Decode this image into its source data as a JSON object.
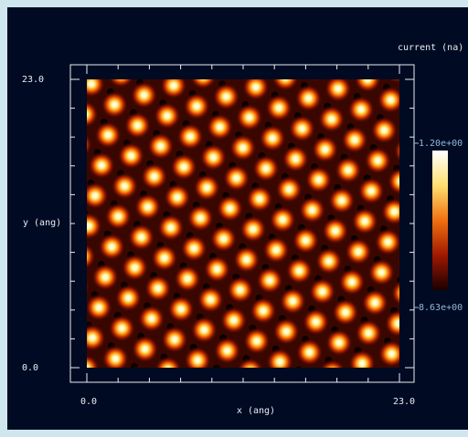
{
  "chart_data": {
    "type": "heatmap",
    "title": "current (na)",
    "xlabel": "x (ang)",
    "ylabel": "y (ang)",
    "xlim": [
      0,
      23
    ],
    "ylim": [
      0,
      23
    ],
    "xticks": [
      {
        "value": 0,
        "label": "0.0"
      },
      {
        "value": 23,
        "label": "23.0"
      }
    ],
    "yticks": [
      {
        "value": 0,
        "label": "0.0"
      },
      {
        "value": 23,
        "label": "23.0"
      }
    ],
    "colorbar": {
      "ticks": [
        {
          "value": 1.2,
          "label": "1.20e+00"
        },
        {
          "value": 8.63,
          "label": "8.63e+00"
        }
      ]
    }
  }
}
